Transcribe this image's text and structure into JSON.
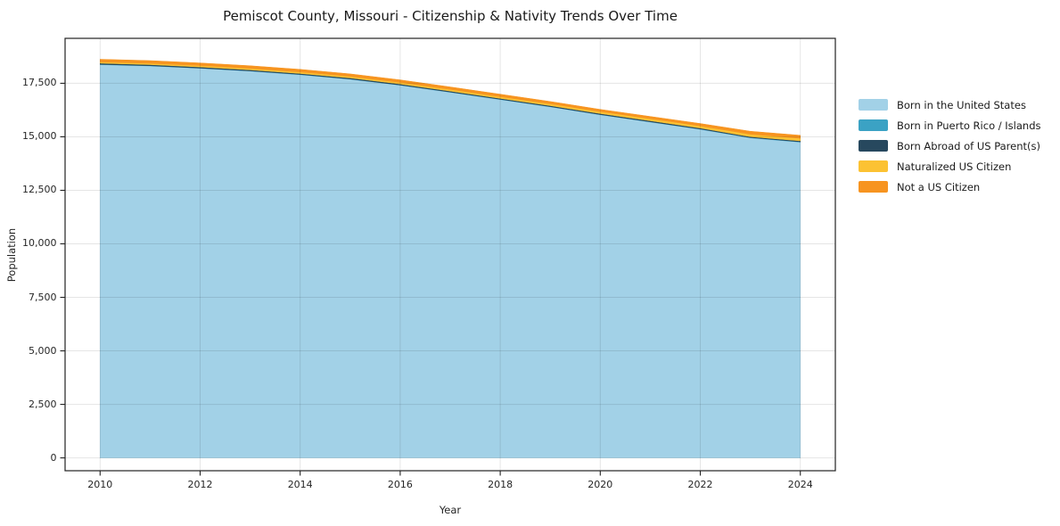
{
  "chart_data": {
    "type": "area",
    "title": "Pemiscot County, Missouri - Citizenship & Nativity Trends Over Time",
    "xlabel": "Year",
    "ylabel": "Population",
    "x": [
      2010,
      2011,
      2012,
      2013,
      2014,
      2015,
      2016,
      2017,
      2018,
      2019,
      2020,
      2021,
      2022,
      2023,
      2024
    ],
    "series": [
      {
        "name": "Born in the United States",
        "color": "#a2d1e7",
        "values": [
          18370,
          18310,
          18200,
          18070,
          17900,
          17690,
          17410,
          17080,
          16740,
          16400,
          16030,
          15690,
          15350,
          14950,
          14750
        ]
      },
      {
        "name": "Born in Puerto Rico / Islands",
        "color": "#3ba2c4",
        "values": [
          12,
          10,
          8,
          10,
          12,
          10,
          8,
          10,
          12,
          10,
          8,
          10,
          12,
          15,
          15
        ]
      },
      {
        "name": "Born Abroad of US Parent(s)",
        "color": "#27485e",
        "values": [
          55,
          50,
          52,
          48,
          45,
          50,
          48,
          45,
          42,
          45,
          48,
          50,
          45,
          40,
          45
        ]
      },
      {
        "name": "Naturalized US Citizen",
        "color": "#fcc233",
        "values": [
          60,
          62,
          65,
          68,
          70,
          72,
          75,
          78,
          80,
          85,
          90,
          95,
          100,
          115,
          120
        ]
      },
      {
        "name": "Not a US Citizen",
        "color": "#f79420",
        "values": [
          125,
          128,
          125,
          124,
          123,
          118,
          119,
          117,
          116,
          110,
          104,
          105,
          113,
          140,
          140
        ]
      }
    ],
    "yticks": [
      0,
      2500,
      5000,
      7500,
      10000,
      12500,
      15000,
      17500
    ],
    "xticks": [
      2010,
      2012,
      2014,
      2016,
      2018,
      2020,
      2022,
      2024
    ],
    "ylim": [
      -600,
      19600
    ],
    "xlim": [
      2009.3,
      2024.7
    ],
    "grid": true,
    "legend_position": "right",
    "spine_color": "#222222",
    "grid_color": "rgba(0,0,0,0.10)",
    "tick_color": "#222222"
  }
}
